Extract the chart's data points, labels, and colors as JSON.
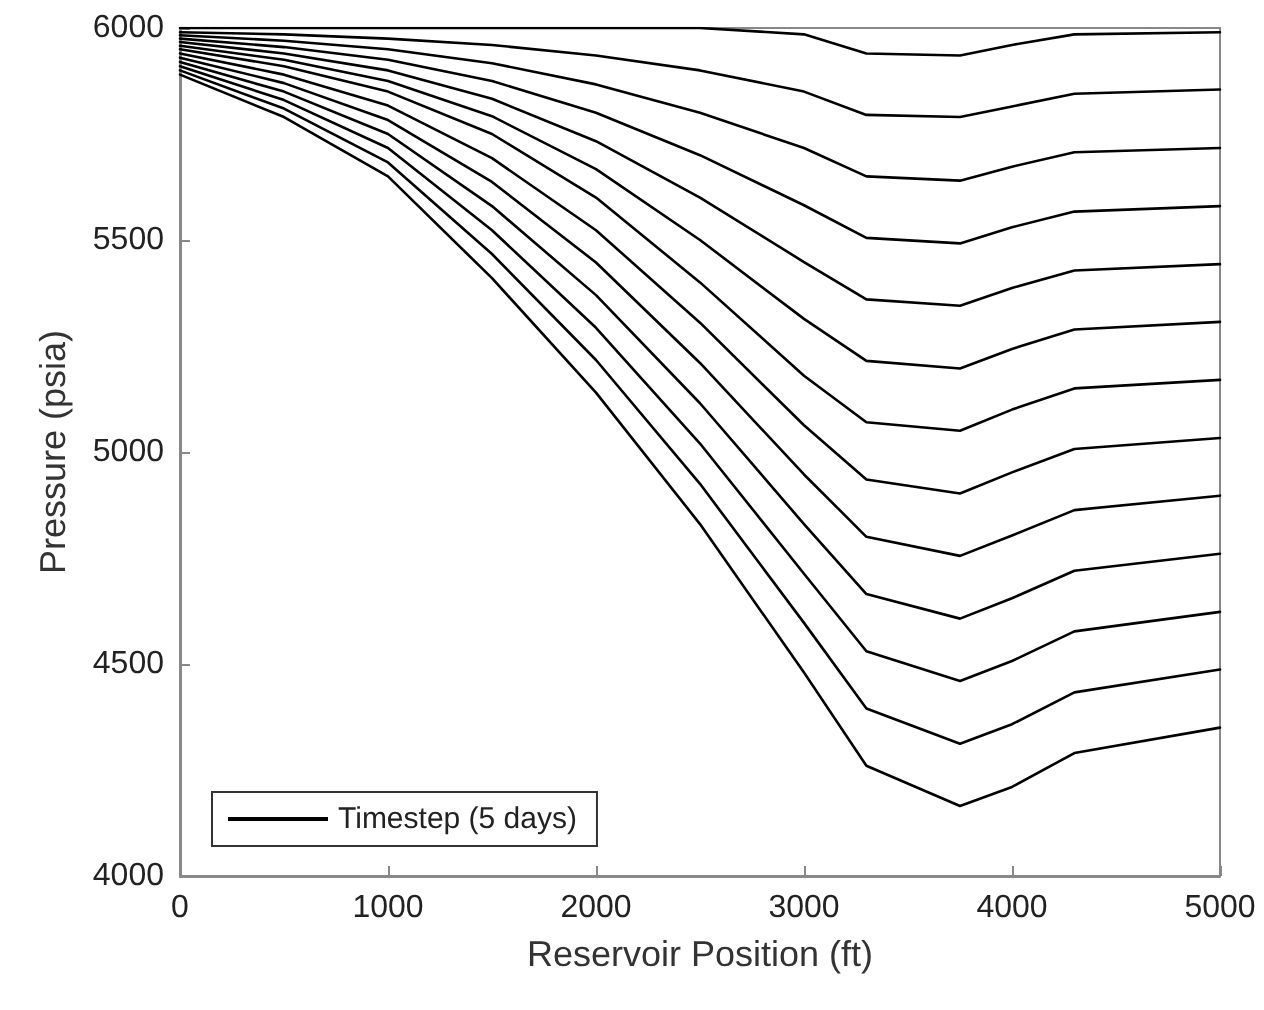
{
  "chart_data": {
    "type": "line",
    "xlabel": "Reservoir Position (ft)",
    "ylabel": "Pressure (psia)",
    "x": [
      0,
      500,
      1000,
      1500,
      2000,
      2500,
      3000,
      3300,
      3750,
      4000,
      4300,
      5000
    ],
    "xlim": [
      0,
      5000
    ],
    "xticks": [
      0,
      1000,
      2000,
      3000,
      4000,
      5000
    ],
    "ylim": [
      4000,
      6000
    ],
    "yticks": [
      4000,
      4500,
      5000,
      5500,
      6000
    ],
    "grid": false,
    "legend": "bottom left",
    "marker": "none",
    "line_style": "solid",
    "series": [
      {
        "name": "Timestep (5 days)",
        "color": "#000000",
        "values": [
          6000,
          6000,
          6000,
          6000,
          6000,
          6000,
          5985,
          5940,
          5935,
          5960,
          5985,
          5990
        ]
      },
      {
        "color": "#000000",
        "values": [
          5990,
          5985,
          5975,
          5960,
          5935,
          5900,
          5850,
          5795,
          5790,
          5815,
          5845,
          5855
        ]
      },
      {
        "color": "#000000",
        "values": [
          5983,
          5970,
          5950,
          5917,
          5867,
          5800,
          5717,
          5650,
          5640,
          5673,
          5707,
          5717
        ]
      },
      {
        "color": "#000000",
        "values": [
          5975,
          5955,
          5925,
          5875,
          5800,
          5700,
          5582,
          5505,
          5492,
          5530,
          5567,
          5580
        ]
      },
      {
        "color": "#000000",
        "values": [
          5967,
          5940,
          5900,
          5833,
          5733,
          5600,
          5448,
          5360,
          5345,
          5387,
          5428,
          5443
        ]
      },
      {
        "color": "#000000",
        "values": [
          5958,
          5925,
          5875,
          5792,
          5667,
          5500,
          5314,
          5215,
          5197,
          5243,
          5289,
          5307
        ]
      },
      {
        "color": "#000000",
        "values": [
          5950,
          5910,
          5850,
          5750,
          5600,
          5400,
          5180,
          5070,
          5050,
          5100,
          5150,
          5170
        ]
      },
      {
        "color": "#000000",
        "values": [
          5940,
          5890,
          5817,
          5693,
          5523,
          5305,
          5063,
          4935,
          4902,
          4952,
          5007,
          5033
        ]
      },
      {
        "color": "#000000",
        "values": [
          5930,
          5870,
          5783,
          5637,
          5447,
          5210,
          4947,
          4800,
          4755,
          4803,
          4863,
          4897
        ]
      },
      {
        "color": "#000000",
        "values": [
          5920,
          5850,
          5750,
          5580,
          5370,
          5115,
          4830,
          4665,
          4607,
          4655,
          4720,
          4760
        ]
      },
      {
        "color": "#000000",
        "values": [
          5910,
          5830,
          5717,
          5523,
          5293,
          5020,
          4713,
          4530,
          4460,
          4507,
          4577,
          4623
        ]
      },
      {
        "color": "#000000",
        "values": [
          5900,
          5810,
          5683,
          5467,
          5217,
          4925,
          4597,
          4395,
          4312,
          4358,
          4433,
          4487
        ]
      },
      {
        "color": "#000000",
        "values": [
          5890,
          5790,
          5650,
          5410,
          5140,
          4830,
          4480,
          4260,
          4165,
          4210,
          4290,
          4350
        ]
      }
    ]
  }
}
